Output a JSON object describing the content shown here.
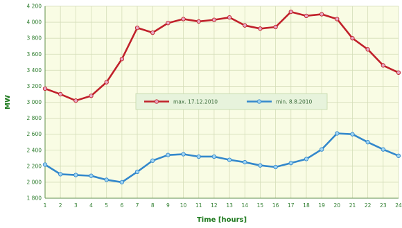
{
  "chart_data": {
    "type": "line",
    "x": [
      1,
      2,
      3,
      4,
      5,
      6,
      7,
      8,
      9,
      10,
      11,
      12,
      13,
      14,
      15,
      16,
      17,
      18,
      19,
      20,
      21,
      22,
      23,
      24
    ],
    "xlabel": "Time [hours]",
    "ylabel": "MW",
    "ylim": [
      1800,
      4200
    ],
    "yticks": [
      1800,
      2000,
      2200,
      2400,
      2600,
      2800,
      3000,
      3200,
      3400,
      3600,
      3800,
      4000,
      4200
    ],
    "ytick_labels": [
      "1 800",
      "2 000",
      "2 200",
      "2 400",
      "2 600",
      "2 800",
      "3 000",
      "3 200",
      "3 400",
      "3 600",
      "3 800",
      "4 000",
      "4 200"
    ],
    "grid": true,
    "legend_placement": "center",
    "series": [
      {
        "name": "max. 17.12.2010",
        "color": "#c0202a",
        "marker_color": "#e8a6c4",
        "values": [
          3170,
          3100,
          3020,
          3080,
          3250,
          3540,
          3930,
          3870,
          3990,
          4040,
          4010,
          4030,
          4060,
          3960,
          3920,
          3940,
          4130,
          4080,
          4100,
          4040,
          3800,
          3660,
          3460,
          3370
        ]
      },
      {
        "name": "min. 8.8.2010",
        "color": "#3388cc",
        "marker_color": "#9fd4f2",
        "values": [
          2220,
          2100,
          2090,
          2080,
          2030,
          2000,
          2130,
          2270,
          2340,
          2350,
          2320,
          2320,
          2280,
          2250,
          2210,
          2190,
          2240,
          2290,
          2410,
          2610,
          2600,
          2500,
          2410,
          2330
        ]
      }
    ],
    "colors": {
      "plot_background": "#f9fce4",
      "gridline": "#d4ddb8",
      "axis": "#5f8f4a"
    }
  }
}
